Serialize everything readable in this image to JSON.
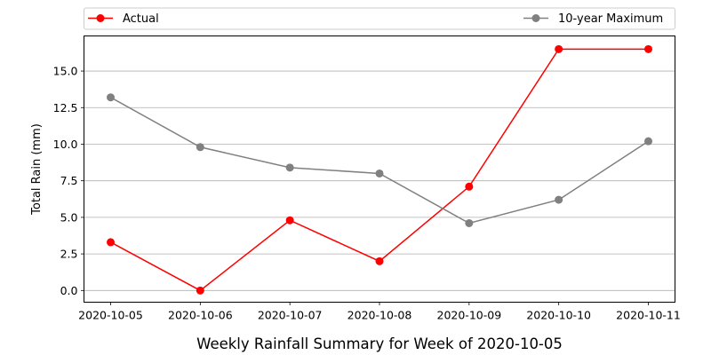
{
  "chart_data": {
    "type": "line",
    "title": "Weekly Rainfall Summary for Week of 2020-10-05",
    "xlabel": "",
    "ylabel": "Total Rain (mm)",
    "x": [
      "2020-10-05",
      "2020-10-06",
      "2020-10-07",
      "2020-10-08",
      "2020-10-09",
      "2020-10-10",
      "2020-10-11"
    ],
    "ylim": [
      -0.8,
      17.4
    ],
    "yticks": [
      0.0,
      2.5,
      5.0,
      7.5,
      10.0,
      12.5,
      15.0
    ],
    "ytick_labels": [
      "0.0",
      "2.5",
      "5.0",
      "7.5",
      "10.0",
      "12.5",
      "15.0"
    ],
    "grid": "horizontal",
    "legend_position": "top, outside plot",
    "series": [
      {
        "name": "Actual",
        "color": "#ff0000",
        "values": [
          3.3,
          0.0,
          4.8,
          2.0,
          7.1,
          16.5,
          16.5
        ]
      },
      {
        "name": "10-year Maximum",
        "color": "#808080",
        "values": [
          13.2,
          9.8,
          8.4,
          8.0,
          4.6,
          6.2,
          10.2
        ]
      }
    ]
  }
}
